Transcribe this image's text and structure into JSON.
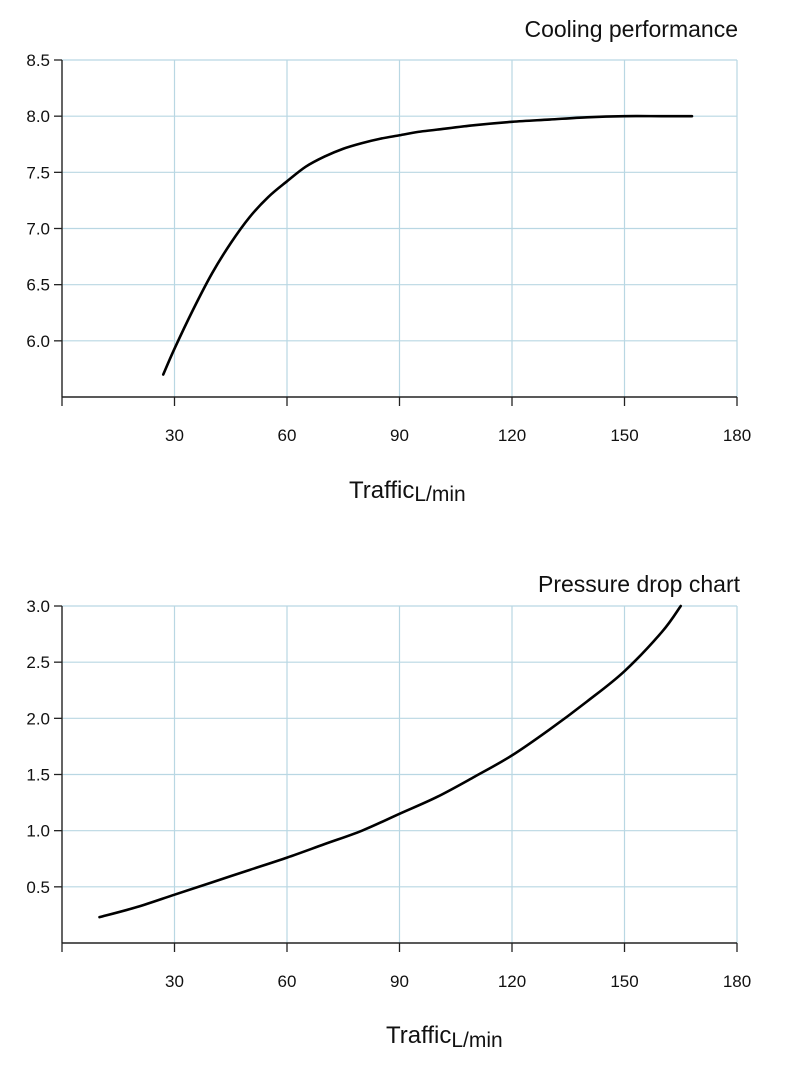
{
  "chart_data": [
    {
      "type": "line",
      "title": "Cooling performance",
      "xlabel": "Traffic",
      "xlabel_unit": "L/min",
      "ylabel": "",
      "xlim": [
        0,
        180
      ],
      "ylim": [
        5.5,
        8.5
      ],
      "x_ticks": [
        30,
        60,
        90,
        120,
        150,
        180
      ],
      "y_ticks": [
        6.0,
        6.5,
        7.0,
        7.5,
        8.0,
        8.5
      ],
      "y_tick_labels": [
        "6.0",
        "6.5",
        "7.0",
        "7.5",
        "8.0",
        "8.5"
      ],
      "grid": true,
      "colors": {
        "line": "#000000",
        "grid": "#b9d7e3",
        "axis": "#222222"
      },
      "series": [
        {
          "x": [
            27,
            30,
            35,
            40,
            45,
            50,
            55,
            60,
            65,
            70,
            75,
            80,
            85,
            90,
            95,
            100,
            110,
            120,
            130,
            140,
            150,
            160,
            168
          ],
          "y": [
            5.7,
            5.93,
            6.28,
            6.6,
            6.87,
            7.1,
            7.28,
            7.42,
            7.55,
            7.64,
            7.71,
            7.76,
            7.8,
            7.83,
            7.86,
            7.88,
            7.92,
            7.95,
            7.97,
            7.99,
            8.0,
            8.0,
            8.0
          ]
        }
      ]
    },
    {
      "type": "line",
      "title": "Pressure drop chart",
      "xlabel": "Traffic",
      "xlabel_unit": "L/min",
      "ylabel": "",
      "xlim": [
        0,
        180
      ],
      "ylim": [
        0,
        3.0
      ],
      "x_ticks": [
        30,
        60,
        90,
        120,
        150,
        180
      ],
      "y_ticks": [
        0.5,
        1.0,
        1.5,
        2.0,
        2.5,
        3.0
      ],
      "y_tick_labels": [
        "0.5",
        "1.0",
        "1.5",
        "2.0",
        "2.5",
        "3.0"
      ],
      "grid": true,
      "colors": {
        "line": "#000000",
        "grid": "#b9d7e3",
        "axis": "#222222"
      },
      "series": [
        {
          "x": [
            10,
            20,
            30,
            40,
            50,
            60,
            70,
            80,
            90,
            100,
            110,
            120,
            130,
            140,
            150,
            160,
            165
          ],
          "y": [
            0.23,
            0.32,
            0.43,
            0.54,
            0.65,
            0.76,
            0.88,
            1.0,
            1.15,
            1.3,
            1.48,
            1.67,
            1.9,
            2.15,
            2.42,
            2.77,
            3.0
          ]
        }
      ]
    }
  ]
}
